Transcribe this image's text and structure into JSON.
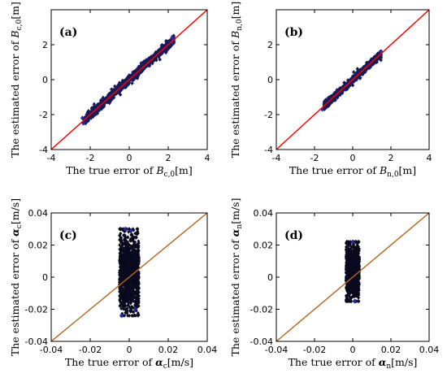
{
  "chart_data": [
    {
      "type": "scatter",
      "panel_label": "(a)",
      "xlabel": {
        "prefix": "The true error of ",
        "symbol": "B",
        "sub": "c,0",
        "unit": "[m]"
      },
      "ylabel": {
        "prefix": "The estimated error of ",
        "symbol": "B",
        "sub": "c,0",
        "unit": "[m]"
      },
      "xlim": [
        -4,
        4
      ],
      "ylim": [
        -4,
        4
      ],
      "xticks": [
        "-4",
        "-2",
        "0",
        "2",
        "4"
      ],
      "yticks": [
        "-4",
        "-2",
        "0",
        "2"
      ],
      "reference_line": {
        "from": [
          -4,
          -4
        ],
        "to": [
          4,
          4
        ],
        "color": "#ff0000"
      },
      "point_color": "#1a1a5a",
      "cloud": {
        "x_center": 0,
        "x_halfwidth": 2.3,
        "y_spread": 0.12,
        "outliers": [
          [
            2.2,
            2.15
          ],
          [
            2.2,
            2.4
          ],
          [
            -2.35,
            -2.5
          ],
          [
            -2.4,
            -2.2
          ]
        ]
      }
    },
    {
      "type": "scatter",
      "panel_label": "(b)",
      "xlabel": {
        "prefix": "The true error of ",
        "symbol": "B",
        "sub": "n,0",
        "unit": "[m]"
      },
      "ylabel": {
        "prefix": "The estimated error of ",
        "symbol": "B",
        "sub": "n,0",
        "unit": "[m]"
      },
      "xlim": [
        -4,
        4
      ],
      "ylim": [
        -4,
        4
      ],
      "xticks": [
        "-4",
        "-2",
        "0",
        "2",
        "4"
      ],
      "yticks": [
        "-4",
        "-2",
        "0",
        "2"
      ],
      "reference_line": {
        "from": [
          -4,
          -4
        ],
        "to": [
          4,
          4
        ],
        "color": "#ff0000"
      },
      "point_color": "#1a1a5a",
      "cloud": {
        "x_center": 0,
        "x_halfwidth": 1.5,
        "y_spread": 0.1,
        "outliers": [
          [
            -1.6,
            -1.7
          ],
          [
            1.5,
            1.6
          ]
        ]
      }
    },
    {
      "type": "scatter",
      "panel_label": "(c)",
      "xlabel": {
        "prefix": "The true error of ",
        "symbol": "α",
        "sub": "c",
        "unit": "[m/s]"
      },
      "ylabel": {
        "prefix": "The estimated error of ",
        "symbol": "α",
        "sub": "c",
        "unit": "[m/s]"
      },
      "xlim": [
        -0.04,
        0.04
      ],
      "ylim": [
        -0.04,
        0.04
      ],
      "xticks": [
        "-0.04",
        "-0.02",
        "0",
        "0.02",
        "0.04"
      ],
      "yticks": [
        "-0.04",
        "-0.02",
        "0",
        "0.02",
        "0.04"
      ],
      "reference_line": {
        "from": [
          -0.04,
          -0.04
        ],
        "to": [
          0.04,
          0.04
        ],
        "color": "#b5651d"
      },
      "point_color": "#0a0a1e",
      "cloud": {
        "x_center": 0,
        "x_halfwidth": 0.005,
        "y_min": -0.024,
        "y_max": 0.03,
        "outliers": [
          [
            -0.002,
            0.03
          ],
          [
            0.001,
            0.029
          ],
          [
            -0.004,
            -0.024
          ],
          [
            0.003,
            -0.02
          ]
        ]
      }
    },
    {
      "type": "scatter",
      "panel_label": "(d)",
      "xlabel": {
        "prefix": "The true error of ",
        "symbol": "α",
        "sub": "n",
        "unit": "[m/s]"
      },
      "ylabel": {
        "prefix": "The estimated error of ",
        "symbol": "α",
        "sub": "n",
        "unit": "[m/s]"
      },
      "xlim": [
        -0.04,
        0.04
      ],
      "ylim": [
        -0.04,
        0.04
      ],
      "xticks": [
        "-0.04",
        "-0.02",
        "0",
        "0.02",
        "0.04"
      ],
      "yticks": [
        "-0.04",
        "-0.02",
        "0",
        "0.02",
        "0.04"
      ],
      "reference_line": {
        "from": [
          -0.04,
          -0.04
        ],
        "to": [
          0.04,
          0.04
        ],
        "color": "#b5651d"
      },
      "point_color": "#0a0a1e",
      "cloud": {
        "x_center": 0,
        "x_halfwidth": 0.0035,
        "y_min": -0.015,
        "y_max": 0.022,
        "outliers": [
          [
            0.0,
            0.022
          ],
          [
            0.001,
            -0.015
          ]
        ]
      }
    }
  ]
}
